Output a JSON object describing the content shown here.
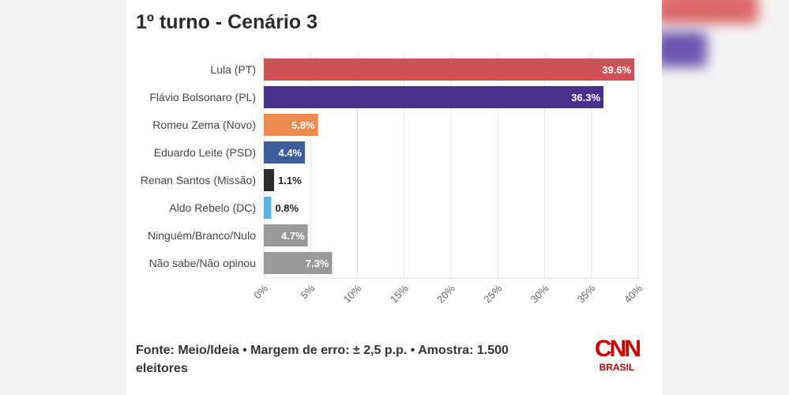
{
  "chart_data": {
    "type": "bar",
    "orientation": "horizontal",
    "title": "1º turno - Cenário 3",
    "categories": [
      "Lula (PT)",
      "Flávio Bolsonaro (PL)",
      "Romeu Zema (Novo)",
      "Eduardo Leite (PSD)",
      "Renan Santos (Missão)",
      "Aldo Rebelo (DC)",
      "Ninguém/Branco/Nulo",
      "Não sabe/Não opinou"
    ],
    "values": [
      39.6,
      36.3,
      5.8,
      4.4,
      1.1,
      0.8,
      4.7,
      7.3
    ],
    "value_labels": [
      "39.6%",
      "36.3%",
      "5.8%",
      "4.4%",
      "1.1%",
      "0.8%",
      "4.7%",
      "7.3%"
    ],
    "colors": [
      "#cc5256",
      "#47318d",
      "#ec8a50",
      "#3e5e9a",
      "#2b2b2b",
      "#5ab4e6",
      "#9a9a9a",
      "#9a9a9a"
    ],
    "xlim": [
      0,
      40
    ],
    "xticks": [
      "0%",
      "5%",
      "10%",
      "15%",
      "20%",
      "25%",
      "30%",
      "35%",
      "40%"
    ],
    "grid": true
  },
  "footer": {
    "source": "Fonte: Meio/Ideia • Margem de erro: ± 2,5 p.p. • Amostra: 1.500 eleitores"
  },
  "logo": {
    "name": "CNN",
    "sub": "BRASIL"
  }
}
